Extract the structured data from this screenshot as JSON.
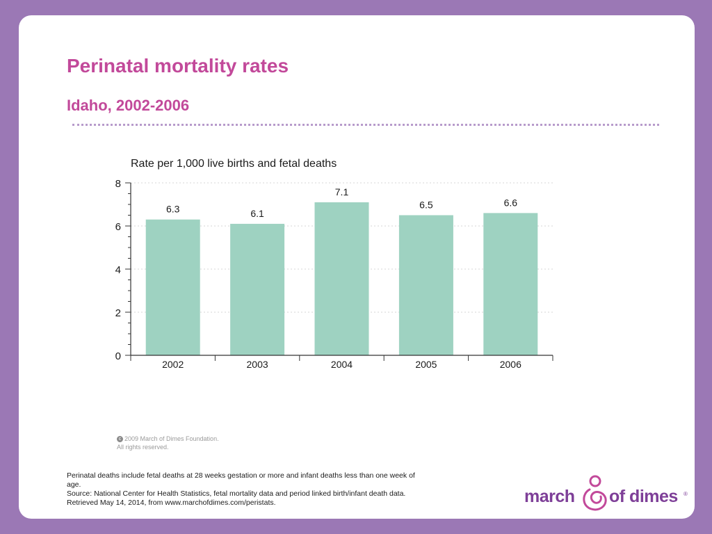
{
  "slide": {
    "title": "Perinatal mortality rates",
    "subtitle": "Idaho, 2002-2006",
    "copyright_line1": "2009 March of Dimes Foundation.",
    "copyright_line2": "All rights reserved.",
    "footnote_line1": "Perinatal deaths include fetal deaths at 28 weeks gestation or more and infant deaths less than one week of age.",
    "footnote_line2": "Source: National Center for Health Statistics, fetal mortality data and period linked birth/infant death data. Retrieved May 14, 2014, from www.marchofdimes.com/peristats.",
    "logo_word1": "march",
    "logo_word2": "of dimes",
    "logo_reg": "®"
  },
  "colors": {
    "accent": "#C2499A",
    "background": "#9B78B5",
    "bar": "#9ED2C1",
    "logo": "#7E3F98"
  },
  "chart_data": {
    "type": "bar",
    "title": "Rate per 1,000 live births and fetal deaths",
    "categories": [
      "2002",
      "2003",
      "2004",
      "2005",
      "2006"
    ],
    "values": [
      6.3,
      6.1,
      7.1,
      6.5,
      6.6
    ],
    "data_labels": [
      "6.3",
      "6.1",
      "7.1",
      "6.5",
      "6.6"
    ],
    "yticks": [
      "0",
      "2",
      "4",
      "6",
      "8"
    ],
    "ylim": [
      0,
      8
    ],
    "grid": true
  }
}
